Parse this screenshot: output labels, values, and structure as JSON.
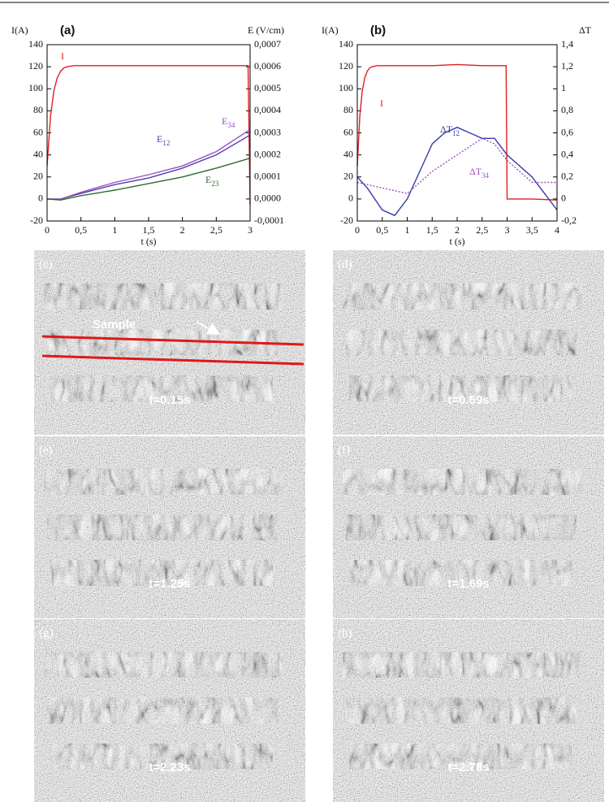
{
  "chart_data": [
    {
      "type": "line",
      "panel_label": "(a)",
      "ylabel": "I(A)",
      "y2label": "E (V/cm)",
      "xlabel": "t (s)",
      "xlim": [
        0,
        3
      ],
      "xticks": [
        0,
        {
          "value": 0.5,
          "label": "0,5"
        },
        1,
        {
          "value": 1.5,
          "label": "1,5"
        },
        2,
        {
          "value": 2.5,
          "label": "2,5"
        },
        3
      ],
      "ylim": [
        -20,
        140
      ],
      "yticks": [
        -20,
        0,
        20,
        40,
        60,
        80,
        100,
        120,
        140
      ],
      "y2lim": [
        -0.0001,
        0.0007
      ],
      "y2ticks": [
        {
          "value": -0.0001,
          "label": "-0,0001"
        },
        {
          "value": 0,
          "label": "0,0000"
        },
        {
          "value": 0.0001,
          "label": "0,0001"
        },
        {
          "value": 0.0002,
          "label": "0,0002"
        },
        {
          "value": 0.0003,
          "label": "0,0003"
        },
        {
          "value": 0.0004,
          "label": "0,0004"
        },
        {
          "value": 0.0005,
          "label": "0,0005"
        },
        {
          "value": 0.0006,
          "label": "0,0006"
        },
        {
          "value": 0.0007,
          "label": "0,0007"
        }
      ],
      "series": [
        {
          "name": "I",
          "color": "#e02020",
          "x": [
            0,
            0.05,
            0.1,
            0.15,
            0.2,
            0.25,
            0.3,
            0.4,
            0.5,
            1,
            1.5,
            2,
            2.5,
            2.97,
            3
          ],
          "values": [
            30,
            75,
            98,
            110,
            116,
            119,
            120,
            121,
            121,
            121,
            121,
            121,
            121,
            121,
            -5
          ]
        },
        {
          "name": "E",
          "name_sub": "12",
          "color": "#4b3fb0",
          "axis": "y2",
          "x": [
            0,
            0.2,
            0.5,
            1,
            1.5,
            2,
            2.5,
            3
          ],
          "values": [
            0,
            0,
            2.5e-05,
            6.5e-05,
            9.5e-05,
            0.00014,
            0.0002,
            0.00029
          ]
        },
        {
          "name": "E",
          "name_sub": "34",
          "color": "#9a4fc0",
          "axis": "y2",
          "x": [
            0,
            0.2,
            0.5,
            1,
            1.5,
            2,
            2.5,
            3
          ],
          "values": [
            0,
            0,
            3e-05,
            7.5e-05,
            0.00011,
            0.00015,
            0.000215,
            0.000315
          ]
        },
        {
          "name": "E",
          "name_sub": "23",
          "color": "#2e6b2e",
          "axis": "y2",
          "x": [
            0,
            0.2,
            0.5,
            1,
            1.5,
            2,
            2.5,
            3
          ],
          "values": [
            0,
            -5e-06,
            1.5e-05,
            4e-05,
            7e-05,
            0.0001,
            0.00014,
            0.000185
          ]
        }
      ]
    },
    {
      "type": "line",
      "panel_label": "(b)",
      "ylabel": "I(A)",
      "y2label": "ΔT",
      "xlabel": "t (s)",
      "xlim": [
        0,
        4
      ],
      "xticks": [
        0,
        {
          "value": 0.5,
          "label": "0,5"
        },
        1,
        {
          "value": 1.5,
          "label": "1,5"
        },
        2,
        {
          "value": 2.5,
          "label": "2,5"
        },
        3,
        {
          "value": 3.5,
          "label": "3,5"
        },
        4
      ],
      "ylim": [
        -20,
        140
      ],
      "yticks": [
        -20,
        0,
        20,
        40,
        60,
        80,
        100,
        120,
        140
      ],
      "y2lim": [
        -0.2,
        1.4
      ],
      "y2ticks": [
        {
          "value": -0.2,
          "label": "-0,2"
        },
        0,
        {
          "value": 0.2,
          "label": "0,2"
        },
        {
          "value": 0.4,
          "label": "0,4"
        },
        {
          "value": 0.6,
          "label": "0,6"
        },
        {
          "value": 0.8,
          "label": "0,8"
        },
        1,
        {
          "value": 1.2,
          "label": "1,2"
        },
        {
          "value": 1.4,
          "label": "1,4"
        }
      ],
      "series": [
        {
          "name": "I",
          "color": "#e02020",
          "x": [
            0,
            0.05,
            0.1,
            0.15,
            0.2,
            0.25,
            0.3,
            0.4,
            0.5,
            1,
            1.5,
            2,
            2.5,
            2.98,
            3,
            3.5,
            4
          ],
          "values": [
            30,
            75,
            98,
            110,
            116,
            119,
            120,
            121,
            121,
            121,
            121,
            122,
            121,
            121,
            0,
            0,
            -1
          ]
        },
        {
          "name": "ΔT",
          "name_sub": "12",
          "color": "#3a3aa8",
          "axis": "y2",
          "x": [
            0,
            0.2,
            0.5,
            0.75,
            1,
            1.25,
            1.5,
            1.75,
            2,
            2.25,
            2.5,
            2.75,
            3,
            3.25,
            3.5,
            3.75,
            4
          ],
          "values": [
            0.2,
            0.1,
            -0.1,
            -0.15,
            0,
            0.25,
            0.5,
            0.6,
            0.65,
            0.6,
            0.55,
            0.55,
            0.4,
            0.3,
            0.2,
            0.05,
            -0.1
          ]
        },
        {
          "name": "ΔT",
          "name_sub": "34",
          "color": "#a050c0",
          "axis": "y2",
          "dashed": true,
          "x": [
            0,
            0.5,
            1,
            1.5,
            2,
            2.5,
            2.75,
            3,
            3.5,
            4
          ],
          "values": [
            0.15,
            0.1,
            0.05,
            0.25,
            0.4,
            0.55,
            0.5,
            0.35,
            0.15,
            0.15
          ]
        }
      ]
    }
  ],
  "panels": [
    {
      "label": "(c)",
      "time": "t=0.15s",
      "annotation": "Sample"
    },
    {
      "label": "(d)",
      "time": "t=0.59s"
    },
    {
      "label": "(e)",
      "time": "t=1.25s"
    },
    {
      "label": "(f)",
      "time": "t=1.69s"
    },
    {
      "label": "(g)",
      "time": "t=2.23s"
    },
    {
      "label": "(h)",
      "time": "t=2.78s"
    }
  ]
}
